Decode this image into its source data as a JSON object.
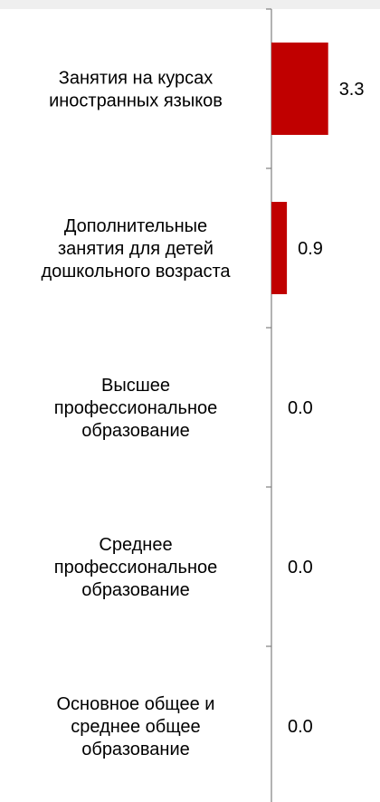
{
  "chart_data": {
    "type": "bar",
    "orientation": "horizontal",
    "categories": [
      [
        "Занятия на курсах",
        "иностранных языков"
      ],
      [
        "Дополнительные",
        "занятия для детей",
        "дошкольного возраста"
      ],
      [
        "Высшее",
        "профессиональное",
        "образование"
      ],
      [
        "Среднее",
        "профессиональное",
        "образование"
      ],
      [
        "Основное общее и",
        "среднее  общее",
        "образование"
      ]
    ],
    "values": [
      3.3,
      0.9,
      0.0,
      0.0,
      0.0
    ],
    "value_labels": [
      "3.3",
      "0.9",
      "0.0",
      "0.0",
      "0.0"
    ],
    "bar_color": "#c00000",
    "axis_color": "#808080",
    "label_color": "#000000",
    "xlim": [
      0,
      5.4
    ],
    "title": "",
    "xlabel": "",
    "ylabel": "",
    "grid": false,
    "legend": "none"
  }
}
